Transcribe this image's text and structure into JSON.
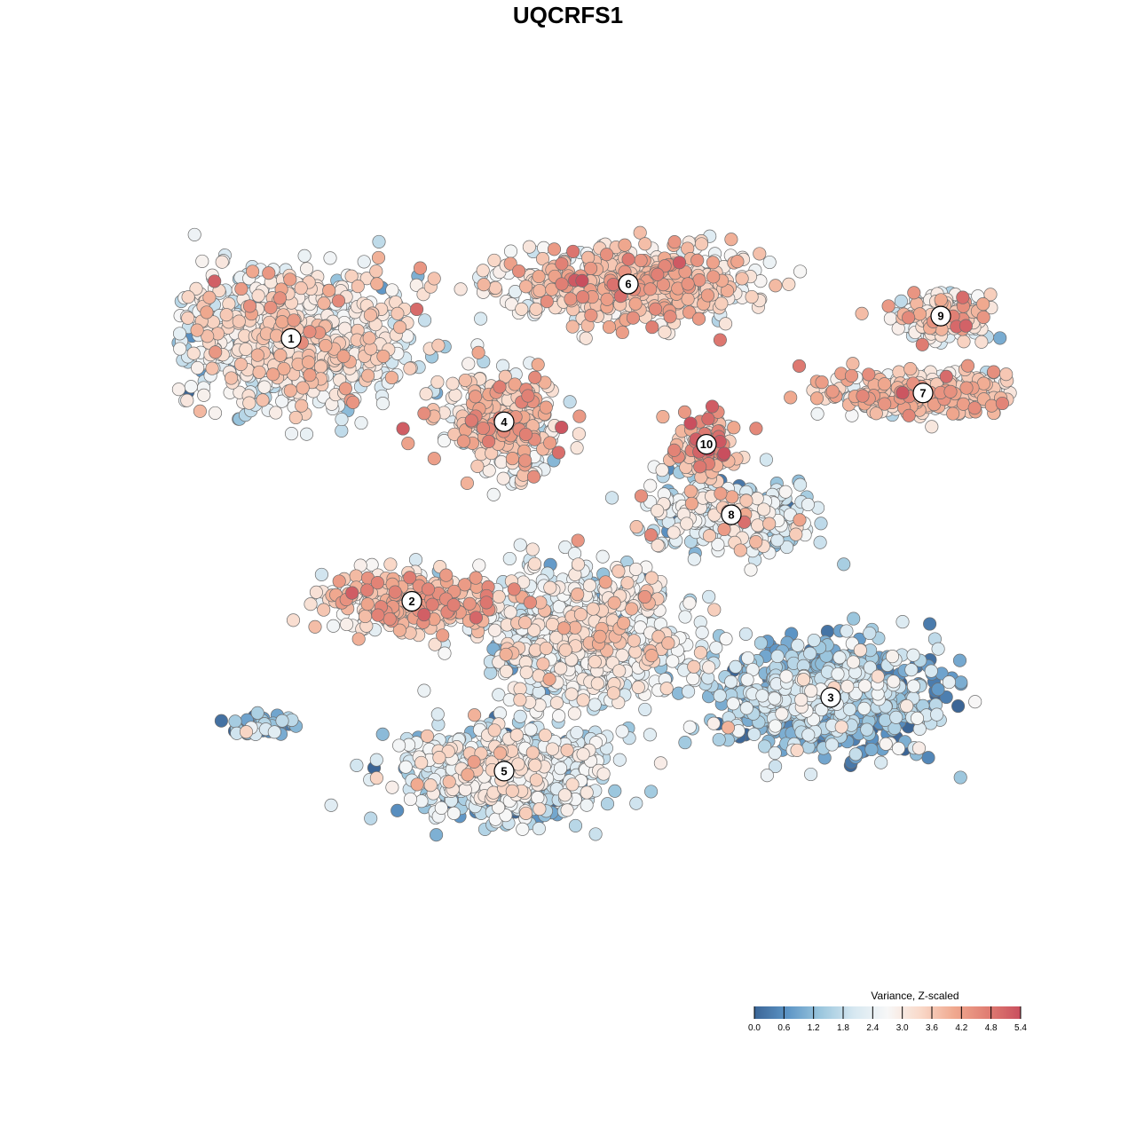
{
  "chart_data": {
    "type": "scatter",
    "title": "UQCRFS1",
    "legend": {
      "title": "Variance, Z-scaled",
      "placement": "bottom-right",
      "range": [
        0.0,
        5.4
      ],
      "ticks": [
        "0.0",
        "0.6",
        "1.2",
        "1.8",
        "2.4",
        "3.0",
        "3.6",
        "4.2",
        "4.8",
        "5.4"
      ],
      "colors": [
        "#3b6596",
        "#5d95c6",
        "#9cc7de",
        "#d7e8f1",
        "#f7f7f7",
        "#f9d9c9",
        "#f0a98f",
        "#e07e73",
        "#c94f5e"
      ]
    },
    "clusters": [
      {
        "label": "1",
        "x": -3.9,
        "y": 3.15,
        "mean": 2.6,
        "spread_x": 2.0,
        "spread_y": 1.2,
        "n": 950
      },
      {
        "label": "2",
        "x": -2.2,
        "y": -0.95,
        "mean": 3.4,
        "spread_x": 1.4,
        "spread_y": 0.5,
        "n": 320
      },
      {
        "label": "3",
        "x": 3.7,
        "y": -2.45,
        "mean": 1.2,
        "spread_x": 1.7,
        "spread_y": 0.9,
        "n": 800
      },
      {
        "label": "4",
        "x": -0.9,
        "y": 1.85,
        "mean": 3.2,
        "spread_x": 0.9,
        "spread_y": 0.8,
        "n": 330
      },
      {
        "label": "5",
        "x": -0.9,
        "y": -3.6,
        "mean": 2.0,
        "spread_x": 1.5,
        "spread_y": 0.8,
        "n": 700
      },
      {
        "label": "6",
        "x": 0.85,
        "y": 4.0,
        "mean": 3.2,
        "spread_x": 1.9,
        "spread_y": 0.6,
        "n": 650
      },
      {
        "label": "7",
        "x": 5.0,
        "y": 2.3,
        "mean": 3.2,
        "spread_x": 1.5,
        "spread_y": 0.4,
        "n": 330
      },
      {
        "label": "8",
        "x": 2.3,
        "y": 0.4,
        "mean": 2.1,
        "spread_x": 1.3,
        "spread_y": 0.6,
        "n": 320
      },
      {
        "label": "9",
        "x": 5.25,
        "y": 3.5,
        "mean": 2.9,
        "spread_x": 0.8,
        "spread_y": 0.4,
        "n": 170
      },
      {
        "label": "10",
        "x": 1.95,
        "y": 1.5,
        "mean": 3.9,
        "spread_x": 0.5,
        "spread_y": 0.5,
        "n": 110
      },
      {
        "label": "",
        "x": 0.3,
        "y": -1.5,
        "mean": 2.5,
        "spread_x": 1.6,
        "spread_y": 1.2,
        "n": 700
      },
      {
        "label": "",
        "x": -4.3,
        "y": -2.9,
        "mean": 1.0,
        "spread_x": 0.5,
        "spread_y": 0.2,
        "n": 50
      }
    ],
    "xlim": [
      -7.5,
      7.5
    ],
    "ylim": [
      -6.8,
      7.6
    ]
  }
}
